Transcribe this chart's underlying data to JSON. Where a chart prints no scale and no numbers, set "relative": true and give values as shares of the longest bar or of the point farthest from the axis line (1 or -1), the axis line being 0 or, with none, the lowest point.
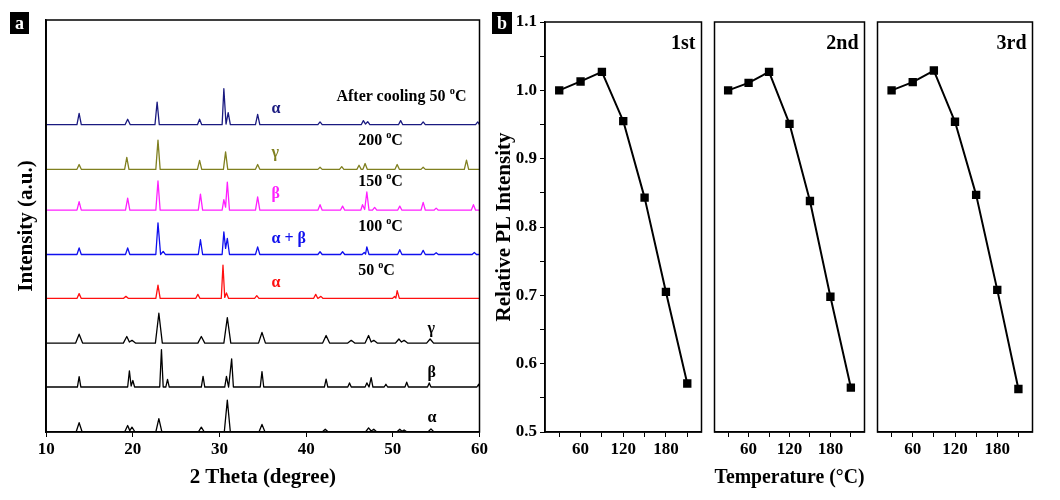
{
  "chart_data": [
    {
      "type": "line",
      "relative": true,
      "xlabel": "2 Theta (degree)",
      "ylabel": "Intensity (a.u.)",
      "xlim": [
        10,
        60
      ],
      "xticks": [
        10,
        20,
        30,
        40,
        50,
        60
      ],
      "annotations": [
        "a",
        "After cooling 50 $^{o}$C",
        "200 $^{o}$C",
        "150 $^{o}$C",
        "100 $^{o}$C",
        "50 $^{o}$C"
      ],
      "series": [
        {
          "name": "α",
          "color": "#1a1a80",
          "x": [
            10,
            13.55,
            13.8,
            14.05,
            19.1,
            19.4,
            19.7,
            22.55,
            22.8,
            23.05,
            27.45,
            27.7,
            27.95,
            30.3,
            30.5,
            30.75,
            31.0,
            31.25,
            34.15,
            34.4,
            34.65,
            41.35,
            41.6,
            41.85,
            46.35,
            46.6,
            46.85,
            47.1,
            47.35,
            50.65,
            50.9,
            51.15,
            53.25,
            53.5,
            53.75,
            59.55,
            59.8,
            60
          ],
          "values": [
            0.895,
            0.895,
            0.928,
            0.895,
            0.895,
            0.911,
            0.895,
            0.895,
            0.961,
            0.895,
            0.895,
            0.911,
            0.895,
            0.895,
            1.0,
            0.897,
            0.93,
            0.895,
            0.895,
            0.925,
            0.895,
            0.895,
            0.903,
            0.895,
            0.895,
            0.907,
            0.897,
            0.904,
            0.895,
            0.895,
            0.907,
            0.895,
            0.895,
            0.903,
            0.895,
            0.895,
            0.903,
            0.895
          ]
        },
        {
          "name": "γ",
          "color": "#808020",
          "x": [
            10,
            13.55,
            13.8,
            14.05,
            19.05,
            19.3,
            19.55,
            22.65,
            22.9,
            23.15,
            27.45,
            27.7,
            27.95,
            30.45,
            30.7,
            30.95,
            34.15,
            34.4,
            34.65,
            41.35,
            41.6,
            41.85,
            43.85,
            44.1,
            44.35,
            45.85,
            46.1,
            46.35,
            46.55,
            46.8,
            47.05,
            50.25,
            50.5,
            50.75,
            53.25,
            53.5,
            53.75,
            58.25,
            58.5,
            58.75,
            60
          ],
          "values": [
            0.765,
            0.765,
            0.779,
            0.765,
            0.765,
            0.8,
            0.765,
            0.765,
            0.85,
            0.765,
            0.765,
            0.791,
            0.765,
            0.765,
            0.816,
            0.765,
            0.765,
            0.779,
            0.765,
            0.765,
            0.771,
            0.765,
            0.765,
            0.773,
            0.765,
            0.765,
            0.777,
            0.765,
            0.765,
            0.782,
            0.765,
            0.765,
            0.779,
            0.765,
            0.765,
            0.771,
            0.765,
            0.765,
            0.792,
            0.765,
            0.765
          ]
        },
        {
          "name": "β",
          "color": "#ff20ff",
          "x": [
            10,
            13.55,
            13.8,
            14.05,
            19.15,
            19.4,
            19.65,
            22.65,
            22.9,
            23.15,
            27.55,
            27.8,
            28.05,
            30.3,
            30.5,
            30.7,
            30.9,
            31.15,
            34.15,
            34.4,
            34.65,
            41.35,
            41.6,
            41.85,
            43.95,
            44.2,
            44.45,
            46.3,
            46.5,
            46.75,
            47.0,
            47.25,
            47.65,
            47.9,
            48.15,
            50.55,
            50.8,
            51.05,
            53.25,
            53.5,
            53.75,
            54.75,
            55.0,
            55.25,
            59.05,
            59.3,
            59.55,
            60
          ],
          "values": [
            0.646,
            0.646,
            0.671,
            0.646,
            0.646,
            0.681,
            0.646,
            0.646,
            0.731,
            0.646,
            0.646,
            0.693,
            0.646,
            0.646,
            0.677,
            0.655,
            0.728,
            0.646,
            0.646,
            0.685,
            0.646,
            0.646,
            0.662,
            0.646,
            0.646,
            0.658,
            0.646,
            0.646,
            0.662,
            0.648,
            0.699,
            0.646,
            0.646,
            0.654,
            0.646,
            0.646,
            0.658,
            0.646,
            0.646,
            0.669,
            0.646,
            0.646,
            0.652,
            0.646,
            0.646,
            0.662,
            0.646,
            0.646
          ]
        },
        {
          "name": "α + β",
          "color": "#1010ee",
          "x": [
            10,
            13.55,
            13.8,
            14.05,
            19.15,
            19.4,
            19.65,
            22.65,
            22.9,
            23.2,
            23.5,
            23.75,
            27.55,
            27.8,
            28.05,
            30.3,
            30.5,
            30.7,
            30.9,
            31.15,
            34.15,
            34.4,
            34.65,
            41.35,
            41.6,
            41.85,
            43.95,
            44.2,
            44.45,
            46.45,
            46.7,
            46.85,
            47.0,
            47.25,
            50.55,
            50.8,
            51.05,
            53.25,
            53.5,
            53.75,
            54.75,
            55.0,
            55.25,
            59.15,
            59.4,
            59.65,
            60
          ],
          "values": [
            0.517,
            0.517,
            0.536,
            0.517,
            0.517,
            0.536,
            0.517,
            0.517,
            0.609,
            0.517,
            0.526,
            0.517,
            0.517,
            0.56,
            0.517,
            0.517,
            0.583,
            0.535,
            0.564,
            0.517,
            0.517,
            0.539,
            0.517,
            0.517,
            0.525,
            0.517,
            0.517,
            0.525,
            0.517,
            0.517,
            0.523,
            0.518,
            0.539,
            0.517,
            0.517,
            0.531,
            0.517,
            0.517,
            0.529,
            0.517,
            0.517,
            0.522,
            0.517,
            0.517,
            0.523,
            0.517,
            0.517
          ]
        },
        {
          "name": "α",
          "color": "#ff1010",
          "x": [
            10,
            13.55,
            13.8,
            14.05,
            18.9,
            19.2,
            19.5,
            22.65,
            22.9,
            23.15,
            27.25,
            27.5,
            27.75,
            30.2,
            30.4,
            30.6,
            30.8,
            31.05,
            34.05,
            34.3,
            34.55,
            40.85,
            41.1,
            41.35,
            41.7,
            41.95,
            49.95,
            50.2,
            50.35,
            50.5,
            50.75,
            60
          ],
          "values": [
            0.389,
            0.389,
            0.403,
            0.389,
            0.389,
            0.395,
            0.389,
            0.389,
            0.428,
            0.389,
            0.389,
            0.401,
            0.389,
            0.389,
            0.486,
            0.392,
            0.405,
            0.389,
            0.389,
            0.397,
            0.389,
            0.389,
            0.401,
            0.389,
            0.395,
            0.389,
            0.389,
            0.395,
            0.39,
            0.412,
            0.389,
            0.389
          ]
        },
        {
          "name": "γ",
          "color": "#000000",
          "x": [
            10,
            13.4,
            13.8,
            14.2,
            18.9,
            19.3,
            19.6,
            19.9,
            20.3,
            22.6,
            23.0,
            23.4,
            27.5,
            27.9,
            28.3,
            30.5,
            30.9,
            31.3,
            34.5,
            34.9,
            35.3,
            41.9,
            42.3,
            42.7,
            44.8,
            45.2,
            45.6,
            46.8,
            47.2,
            47.5,
            47.8,
            48.2,
            50.3,
            50.7,
            51.0,
            51.3,
            51.7,
            53.9,
            54.3,
            54.7,
            60
          ],
          "values": [
            0.259,
            0.259,
            0.285,
            0.259,
            0.259,
            0.278,
            0.262,
            0.267,
            0.259,
            0.259,
            0.346,
            0.259,
            0.259,
            0.278,
            0.259,
            0.259,
            0.333,
            0.259,
            0.259,
            0.29,
            0.259,
            0.259,
            0.281,
            0.259,
            0.259,
            0.267,
            0.259,
            0.259,
            0.281,
            0.262,
            0.267,
            0.259,
            0.259,
            0.271,
            0.262,
            0.267,
            0.259,
            0.259,
            0.271,
            0.259,
            0.259
          ]
        },
        {
          "name": "β",
          "color": "#000000",
          "x": [
            10,
            13.6,
            13.8,
            14.0,
            19.4,
            19.6,
            19.8,
            20.0,
            20.2,
            23.1,
            23.3,
            23.5,
            23.8,
            24.0,
            24.2,
            27.9,
            28.1,
            28.3,
            30.6,
            30.8,
            31.05,
            31.4,
            31.6,
            34.7,
            34.9,
            35.1,
            42.1,
            42.3,
            42.5,
            44.8,
            45.0,
            45.2,
            46.8,
            47.0,
            47.25,
            47.5,
            47.7,
            49.0,
            49.2,
            49.4,
            51.4,
            51.6,
            51.8,
            54.0,
            54.2,
            54.4,
            59.7,
            59.9,
            60
          ],
          "values": [
            0.131,
            0.131,
            0.161,
            0.131,
            0.131,
            0.178,
            0.134,
            0.15,
            0.131,
            0.131,
            0.24,
            0.131,
            0.131,
            0.153,
            0.131,
            0.131,
            0.162,
            0.131,
            0.131,
            0.162,
            0.131,
            0.213,
            0.131,
            0.131,
            0.176,
            0.131,
            0.131,
            0.154,
            0.131,
            0.131,
            0.143,
            0.131,
            0.131,
            0.143,
            0.131,
            0.158,
            0.131,
            0.131,
            0.139,
            0.131,
            0.131,
            0.145,
            0.131,
            0.131,
            0.143,
            0.131,
            0.131,
            0.139,
            0.131
          ]
        },
        {
          "name": "α",
          "color": "#000000",
          "x": [
            10,
            13.45,
            13.8,
            14.15,
            19.05,
            19.4,
            19.65,
            19.9,
            20.25,
            22.65,
            23.0,
            23.35,
            27.55,
            27.9,
            28.25,
            30.55,
            30.9,
            31.25,
            34.55,
            34.9,
            35.25,
            41.85,
            42.2,
            42.55,
            46.85,
            47.2,
            47.5,
            47.8,
            48.15,
            50.45,
            50.8,
            51.05,
            51.3,
            51.65,
            54.05,
            54.4,
            54.75,
            60
          ],
          "values": [
            0,
            0,
            0.027,
            0,
            0,
            0.019,
            0.004,
            0.014,
            0,
            0,
            0.039,
            0,
            0,
            0.014,
            0,
            0,
            0.093,
            0,
            0,
            0.022,
            0,
            0,
            0.008,
            0,
            0,
            0.012,
            0.003,
            0.008,
            0,
            0,
            0.008,
            0.002,
            0.006,
            0,
            0,
            0.009,
            0,
            0
          ]
        }
      ]
    },
    {
      "type": "line",
      "title": "1st",
      "ylabel": "Relative PL Intensity",
      "annotations": [
        "b"
      ],
      "marker": "square",
      "color": "#000000",
      "x": [
        30,
        60,
        90,
        120,
        150,
        180,
        210
      ],
      "values": [
        1.0,
        1.013,
        1.027,
        0.955,
        0.843,
        0.705,
        0.571
      ],
      "xlim": [
        10,
        230
      ],
      "xticks": [
        {
          "value": 30,
          "label": null
        },
        60,
        {
          "value": 90,
          "label": null
        },
        120,
        {
          "value": 150,
          "label": null
        },
        180,
        {
          "value": 210,
          "label": null
        }
      ],
      "ylim": [
        0.5,
        1.1
      ],
      "yticks": [
        0.5,
        {
          "value": 0.55,
          "label": null
        },
        0.6,
        {
          "value": 0.65,
          "label": null
        },
        0.7,
        {
          "value": 0.75,
          "label": null
        },
        0.8,
        {
          "value": 0.85,
          "label": null
        },
        0.9,
        {
          "value": 0.95,
          "label": null
        },
        {
          "value": 1,
          "label": "1.0"
        },
        {
          "value": 1.05,
          "label": null
        },
        1.1
      ]
    },
    {
      "type": "line",
      "title": "2nd",
      "xlabel": "Temperature (°C)",
      "tick_labels": "x",
      "marker": "square",
      "color": "#000000",
      "x": [
        30,
        60,
        90,
        120,
        150,
        180,
        210
      ],
      "values": [
        1.0,
        1.011,
        1.027,
        0.951,
        0.838,
        0.698,
        0.565
      ],
      "xlim": [
        10,
        230
      ],
      "xticks": [
        {
          "value": 30,
          "label": null
        },
        60,
        {
          "value": 90,
          "label": null
        },
        120,
        {
          "value": 150,
          "label": null
        },
        180,
        {
          "value": 210,
          "label": null
        }
      ],
      "ylim": [
        0.5,
        1.1
      ]
    },
    {
      "type": "line",
      "title": "3rd",
      "tick_labels": "x",
      "marker": "square",
      "color": "#000000",
      "x": [
        30,
        60,
        90,
        120,
        150,
        180,
        210
      ],
      "values": [
        1.0,
        1.012,
        1.029,
        0.954,
        0.847,
        0.708,
        0.563
      ],
      "xlim": [
        10,
        230
      ],
      "xticks": [
        {
          "value": 30,
          "label": null
        },
        60,
        {
          "value": 90,
          "label": null
        },
        120,
        {
          "value": 150,
          "label": null
        },
        180,
        {
          "value": 210,
          "label": null
        }
      ],
      "ylim": [
        0.5,
        1.1
      ]
    }
  ]
}
